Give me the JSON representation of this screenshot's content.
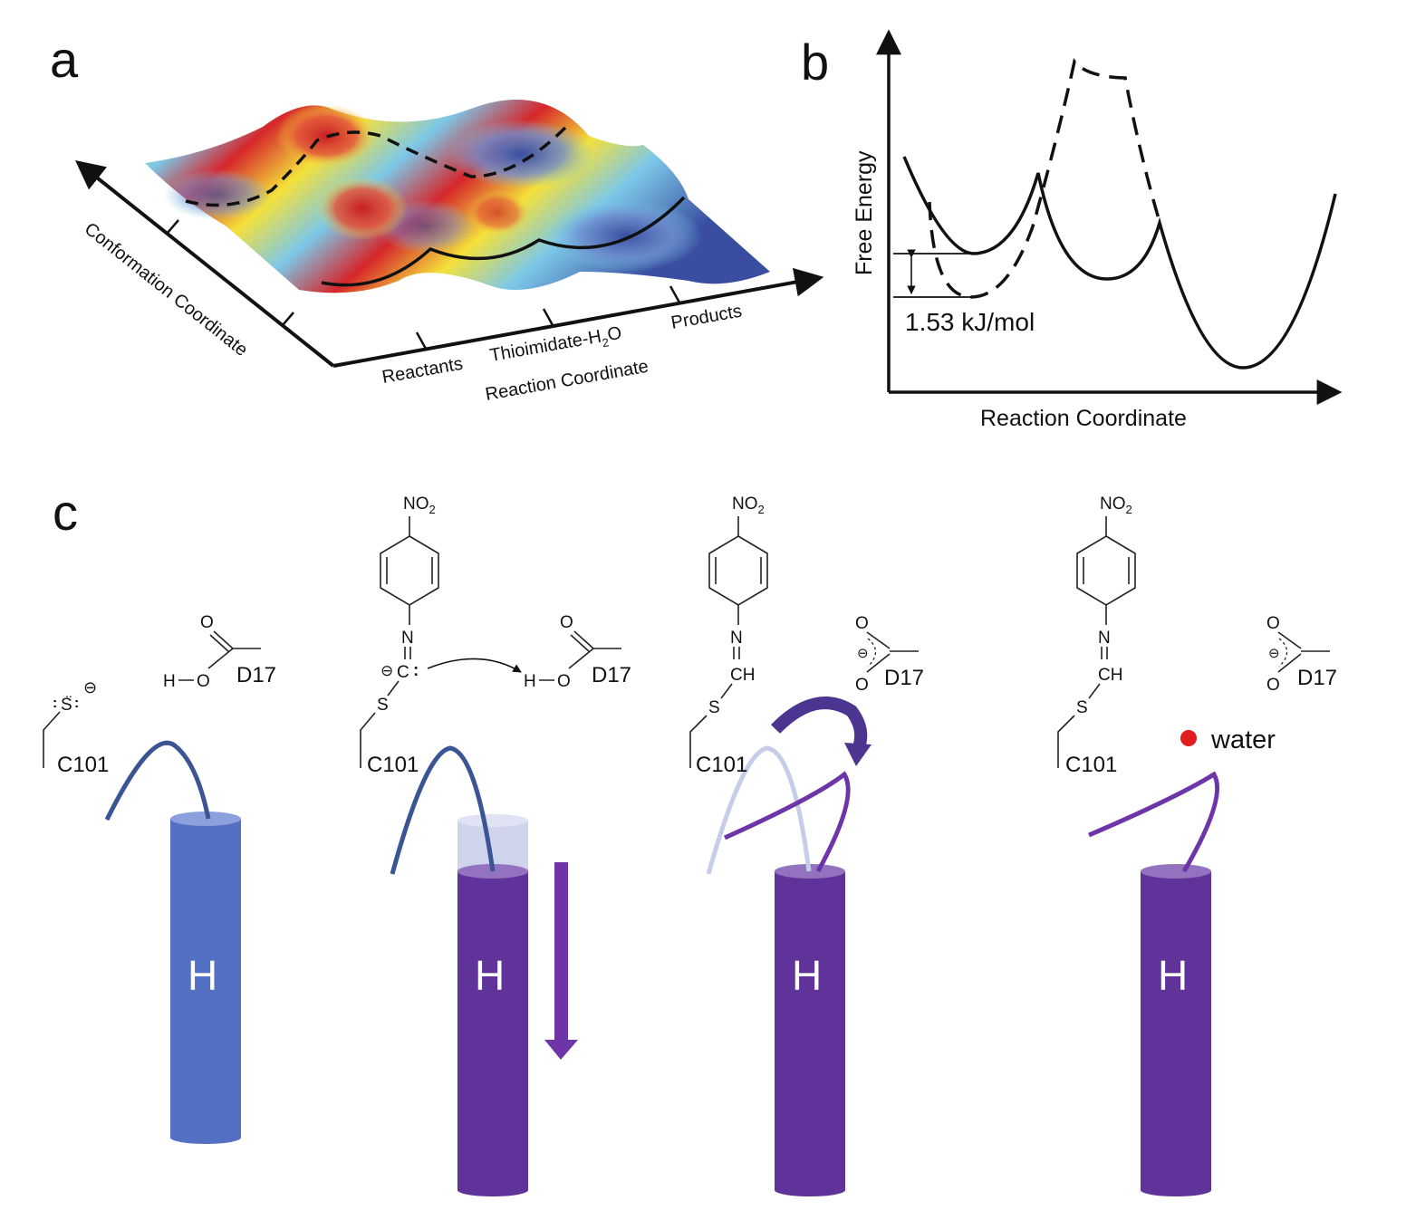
{
  "panel_a": {
    "letter": "a",
    "conformation_axis_label": "Conformation Coordinate",
    "reaction_axis_label": "Reaction Coordinate",
    "tick_labels": [
      "Reactants",
      "Thioimidate-H",
      "2",
      "O",
      "Products"
    ],
    "surface_colors": [
      "#d6262b",
      "#f4e13a",
      "#7cc8e8",
      "#3a4ea0"
    ]
  },
  "panel_b": {
    "letter": "b",
    "ylabel": "Free Energy",
    "xlabel": "Reaction Coordinate",
    "energy_difference": "1.53 kJ/mol"
  },
  "panel_c": {
    "letter": "c",
    "helix_colors": {
      "blue": "#5470c2",
      "purple": "#5f3399",
      "faded": "#c7cde9"
    },
    "water_color": "#e11d1d",
    "states": [
      {
        "helix_label": "H",
        "residue_cys": "C101",
        "residue_asp": "D17",
        "sulfur": "S",
        "acid_o": "O",
        "acid_h": "H",
        "charge": "⊖"
      },
      {
        "helix_label": "H",
        "residue_cys": "C101",
        "residue_asp": "D17",
        "nitro": "NO",
        "nitro_sub": "2",
        "n_atom": "N",
        "c_atom": "C",
        "sulfur": "S",
        "acid_o": "O",
        "acid_h": "H",
        "charge": "⊖"
      },
      {
        "helix_label": "H",
        "residue_cys": "C101",
        "residue_asp": "D17",
        "nitro": "NO",
        "nitro_sub": "2",
        "n_atom": "N",
        "ch_group": "CH",
        "sulfur": "S",
        "carboxylate_o": "O",
        "charge": "⊖"
      },
      {
        "helix_label": "H",
        "residue_cys": "C101",
        "residue_asp": "D17",
        "nitro": "NO",
        "nitro_sub": "2",
        "n_atom": "N",
        "ch_group": "CH",
        "sulfur": "S",
        "carboxylate_o": "O",
        "charge": "⊖",
        "water_label": "water"
      }
    ]
  }
}
